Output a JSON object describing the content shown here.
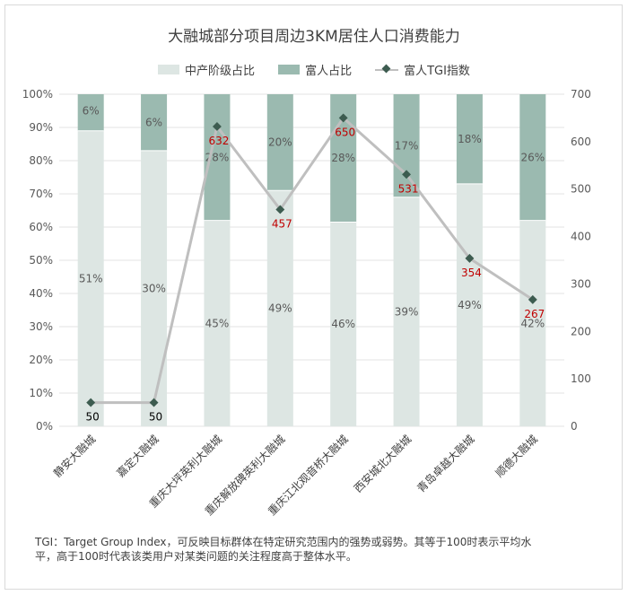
{
  "chart_data": {
    "type": "bar",
    "title": "大融城部分项目周边3KM居住人口消费能力",
    "categories": [
      "静安大融城",
      "嘉定大融城",
      "重庆大坪英利大融城",
      "重庆解放碑英利大融城",
      "重庆江北观音桥大融城",
      "西安城北大融城",
      "青岛卓越大融城",
      "顺德大融城"
    ],
    "series": [
      {
        "name": "中产阶级占比",
        "kind": "stacked-bar",
        "axis": "left",
        "values": [
          0.89,
          0.83,
          0.62,
          0.71,
          0.615,
          0.69,
          0.73,
          0.62
        ],
        "labels": [
          "51%",
          "30%",
          "45%",
          "49%",
          "46%",
          "39%",
          "49%",
          "42%"
        ],
        "color": "#dde6e3"
      },
      {
        "name": "富人占比",
        "kind": "stacked-bar",
        "axis": "left",
        "values": [
          0.11,
          0.17,
          0.38,
          0.29,
          0.385,
          0.31,
          0.27,
          0.38
        ],
        "labels": [
          "6%",
          "6%",
          "28%",
          "20%",
          "28%",
          "17%",
          "18%",
          "26%"
        ],
        "color": "#9bbab0"
      },
      {
        "name": "富人TGI指数",
        "kind": "line",
        "axis": "right",
        "values": [
          50,
          50,
          632,
          457,
          650,
          531,
          354,
          267
        ],
        "labels": [
          "50",
          "50",
          "632",
          "457",
          "650",
          "531",
          "354",
          "267"
        ],
        "line_color": "#bfbfbf",
        "marker_color": "#3d5c50",
        "label_colors": [
          "#000000",
          "#000000",
          "#c00000",
          "#c00000",
          "#c00000",
          "#c00000",
          "#c00000",
          "#c00000"
        ]
      }
    ],
    "y_left": {
      "ticks": [
        "0%",
        "10%",
        "20%",
        "30%",
        "40%",
        "50%",
        "60%",
        "70%",
        "80%",
        "90%",
        "100%"
      ],
      "ylim": [
        0,
        1
      ]
    },
    "y_right": {
      "ticks": [
        "0",
        "100",
        "200",
        "300",
        "400",
        "500",
        "600",
        "700"
      ],
      "ylim": [
        0,
        700
      ]
    },
    "legend_position": "top",
    "grid": true
  },
  "note": "TGI：Target Group Index，可反映目标群体在特定研究范围内的强势或弱势。其等于100时表示平均水平，高于100时代表该类用户对某类问题的关注程度高于整体水平。"
}
